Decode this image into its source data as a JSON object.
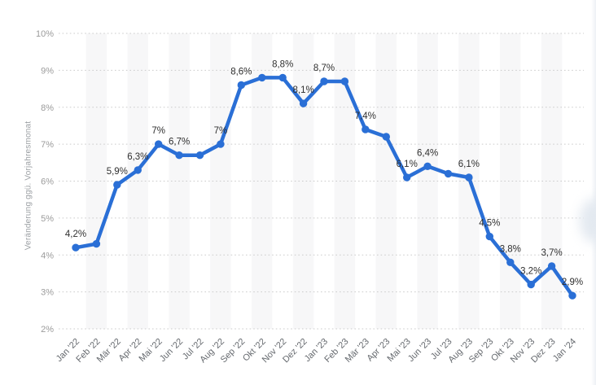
{
  "chart_data": {
    "type": "line",
    "ylabel": "Veränderung ggü. Vorjahresmonat",
    "categories": [
      "Jan '22",
      "Feb '22",
      "Mär '22",
      "Apr '22",
      "Mai '22",
      "Jun '22",
      "Jul '22",
      "Aug '22",
      "Sep '22",
      "Okt '22",
      "Nov '22",
      "Dez '22",
      "Jan '23",
      "Feb '23",
      "Mär '23",
      "Apr '23",
      "Mai '23",
      "Jun '23",
      "Jul '23",
      "Aug '23",
      "Sep '23",
      "Okt '23",
      "Nov '23",
      "Dez '23",
      "Jan '24"
    ],
    "values": [
      4.2,
      4.3,
      5.9,
      6.3,
      7,
      6.7,
      6.7,
      7,
      8.6,
      8.8,
      8.8,
      8.1,
      8.7,
      8.7,
      7.4,
      7.2,
      6.1,
      6.4,
      6.2,
      6.1,
      4.5,
      3.8,
      3.2,
      3.7,
      2.9
    ],
    "point_labels": [
      "4,2%",
      null,
      "5,9%",
      "6,3%",
      "7%",
      "6,7%",
      null,
      "7%",
      "8,6%",
      null,
      "8,8%",
      "8,1%",
      "8,7%",
      null,
      "7,4%",
      null,
      "6,1%",
      "6,4%",
      null,
      "6,1%",
      "4,5%",
      "3,8%",
      "3,2%",
      "3,7%",
      "2,9%"
    ],
    "ylim": [
      2,
      10
    ],
    "ytick_step": 1,
    "ytick_suffix": "%",
    "grid": "horizontal-dotted",
    "background_stripes": "alternating-vertical-on-even-columns",
    "legend": "none",
    "x_label_rotation": -45,
    "line_color": "#2a6fd6",
    "marker": "circle",
    "stripe_color": "#f7f7f8",
    "grid_color": "#cbcbcb",
    "ytick_color": "#9b9b9b",
    "xtick_color": "#65696e",
    "point_label_color": "#2f2f2f"
  }
}
